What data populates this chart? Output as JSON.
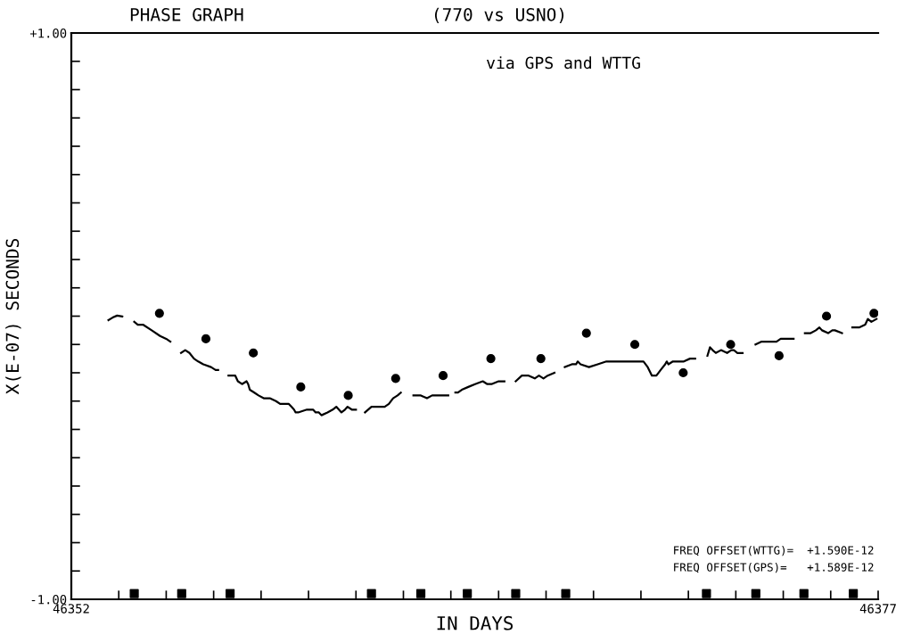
{
  "chart_data": {
    "type": "line",
    "title": "PHASE GRAPH",
    "subtitle": "(770 vs USNO)",
    "xlabel": "IN DAYS",
    "ylabel": "X(E-07) SECONDS",
    "annotations": [
      "via GPS and WTTG",
      "FREQ OFFSET(WTTG)=  +1.590E-12",
      "FREQ OFFSET(GPS)=   +1.589E-12"
    ],
    "xlim": [
      46352,
      46377
    ],
    "ylim": [
      -1.0,
      1.0
    ],
    "xticks": [
      {
        "value": 46352,
        "label": "46352"
      },
      {
        "value": 46353.47,
        "label": null
      },
      {
        "value": 46354.94,
        "label": null
      },
      {
        "value": 46356.41,
        "label": null
      },
      {
        "value": 46357.88,
        "label": null
      },
      {
        "value": 46359.35,
        "label": null
      },
      {
        "value": 46360.82,
        "label": null
      },
      {
        "value": 46362.29,
        "label": null
      },
      {
        "value": 46363.76,
        "label": null
      },
      {
        "value": 46365.24,
        "label": null
      },
      {
        "value": 46366.71,
        "label": null
      },
      {
        "value": 46368.18,
        "label": null
      },
      {
        "value": 46369.65,
        "label": null
      },
      {
        "value": 46371.12,
        "label": null
      },
      {
        "value": 46372.59,
        "label": null
      },
      {
        "value": 46374.06,
        "label": null
      },
      {
        "value": 46375.53,
        "label": null
      },
      {
        "value": 46377,
        "label": "46377"
      }
    ],
    "yticks": [
      {
        "value": -1.0,
        "label": "-1.00"
      },
      {
        "value": -0.9,
        "label": null
      },
      {
        "value": -0.8,
        "label": null
      },
      {
        "value": -0.7,
        "label": null
      },
      {
        "value": -0.6,
        "label": null
      },
      {
        "value": -0.5,
        "label": null
      },
      {
        "value": -0.4,
        "label": null
      },
      {
        "value": -0.3,
        "label": null
      },
      {
        "value": -0.2,
        "label": null
      },
      {
        "value": -0.1,
        "label": null
      },
      {
        "value": 0.0,
        "label": null
      },
      {
        "value": 0.1,
        "label": null
      },
      {
        "value": 0.2,
        "label": null
      },
      {
        "value": 0.3,
        "label": null
      },
      {
        "value": 0.4,
        "label": null
      },
      {
        "value": 0.5,
        "label": null
      },
      {
        "value": 0.6,
        "label": null
      },
      {
        "value": 0.7,
        "label": null
      },
      {
        "value": 0.8,
        "label": null
      },
      {
        "value": 0.9,
        "label": null
      },
      {
        "value": 1.0,
        "label": "+1.00"
      }
    ],
    "grid": false,
    "legend": false,
    "series": [
      {
        "color": "#000000",
        "marker": "none",
        "line_style": "solid",
        "x": [
          46353.15,
          46353.28,
          46353.42,
          46353.58,
          46353.75,
          46353.95,
          46354.06,
          46354.22,
          46354.49,
          46354.75,
          46354.94,
          46355.07,
          46355.2,
          46355.4,
          46355.53,
          46355.66,
          46355.8,
          46355.93,
          46356.09,
          46356.33,
          46356.47,
          46356.55,
          46356.7,
          46356.87,
          46357.0,
          46357.08,
          46357.16,
          46357.29,
          46357.43,
          46357.48,
          46357.53,
          46357.67,
          46357.8,
          46357.96,
          46358.15,
          46358.34,
          46358.47,
          46358.63,
          46358.74,
          46358.82,
          46358.9,
          46358.95,
          46359.03,
          46359.3,
          46359.49,
          46359.57,
          46359.67,
          46359.75,
          46359.94,
          46360.1,
          46360.21,
          46360.29,
          46360.37,
          46360.48,
          46360.56,
          46360.69,
          46360.82,
          46360.96,
          46361.1,
          46361.3,
          46361.49,
          46361.71,
          46361.84,
          46361.97,
          46362.11,
          46362.21,
          46362.43,
          46362.6,
          46362.83,
          46363.02,
          46363.18,
          46363.31,
          46363.5,
          46363.68,
          46363.76,
          46363.9,
          46363.98,
          46364.1,
          46364.3,
          46364.51,
          46364.75,
          46364.89,
          46365.02,
          46365.24,
          46365.42,
          46365.6,
          46365.77,
          46365.96,
          46366.17,
          46366.36,
          46366.49,
          46366.63,
          46366.76,
          46366.97,
          46367.1,
          46367.29,
          46367.51,
          46367.64,
          46367.69,
          46367.78,
          46368.04,
          46368.31,
          46368.58,
          46368.84,
          46369.11,
          46369.46,
          46369.73,
          46369.86,
          46369.99,
          46370.13,
          46370.26,
          46370.4,
          46370.45,
          46370.5,
          46370.64,
          46370.8,
          46370.98,
          46371.17,
          46371.33,
          46371.5,
          46371.71,
          46371.79,
          46371.87,
          46371.97,
          46372.13,
          46372.32,
          46372.45,
          46372.53,
          46372.64,
          46372.8,
          46373.0,
          46373.2,
          46373.39,
          46373.66,
          46373.85,
          46373.98,
          46374.38,
          46374.55,
          46374.73,
          46374.91,
          46375.07,
          46375.18,
          46375.26,
          46375.45,
          46375.58,
          46375.66,
          46375.88,
          46376.05,
          46376.2,
          46376.41,
          46376.6,
          46376.68,
          46376.79,
          46376.95
        ],
        "values": [
          -0.014,
          -0.005,
          0.002,
          -0.001,
          null,
          -0.02,
          -0.03,
          -0.03,
          -0.05,
          -0.07,
          -0.08,
          -0.09,
          null,
          -0.13,
          -0.12,
          -0.13,
          -0.15,
          -0.16,
          -0.17,
          -0.18,
          -0.19,
          -0.19,
          null,
          -0.21,
          -0.21,
          -0.21,
          -0.23,
          -0.24,
          -0.23,
          -0.24,
          -0.26,
          -0.27,
          -0.28,
          -0.29,
          -0.29,
          -0.3,
          -0.31,
          -0.31,
          -0.31,
          -0.32,
          -0.33,
          -0.34,
          -0.34,
          -0.33,
          -0.33,
          -0.34,
          -0.34,
          -0.35,
          -0.34,
          -0.33,
          -0.32,
          -0.33,
          -0.34,
          -0.33,
          -0.32,
          -0.33,
          -0.33,
          null,
          -0.34,
          -0.32,
          -0.32,
          -0.32,
          -0.31,
          -0.29,
          -0.28,
          -0.27,
          null,
          -0.28,
          -0.28,
          -0.29,
          -0.28,
          -0.28,
          -0.28,
          -0.28,
          null,
          -0.27,
          -0.27,
          -0.26,
          -0.25,
          -0.24,
          -0.23,
          -0.24,
          -0.24,
          -0.23,
          -0.23,
          null,
          -0.23,
          -0.21,
          -0.21,
          -0.22,
          -0.21,
          -0.22,
          -0.21,
          -0.2,
          null,
          -0.18,
          -0.17,
          -0.17,
          -0.16,
          -0.17,
          -0.18,
          -0.17,
          -0.16,
          -0.16,
          -0.16,
          -0.16,
          -0.16,
          -0.18,
          -0.21,
          -0.21,
          -0.19,
          -0.17,
          -0.16,
          -0.17,
          -0.16,
          -0.16,
          -0.16,
          -0.15,
          -0.15,
          null,
          -0.14,
          -0.11,
          -0.12,
          -0.13,
          -0.12,
          -0.13,
          -0.12,
          -0.12,
          -0.13,
          -0.13,
          null,
          -0.1,
          -0.09,
          -0.09,
          -0.09,
          -0.08,
          -0.08,
          null,
          -0.06,
          -0.06,
          -0.05,
          -0.04,
          -0.05,
          -0.06,
          -0.05,
          -0.05,
          -0.06,
          null,
          -0.04,
          -0.04,
          -0.03,
          -0.01,
          -0.02,
          -0.01
        ]
      },
      {
        "type": "scatter",
        "color": "#000000",
        "marker": "circle",
        "x": [
          46354.73,
          46356.17,
          46357.64,
          46359.11,
          46360.58,
          46362.05,
          46363.52,
          46365.0,
          46366.55,
          46367.96,
          46369.46,
          46370.96,
          46372.43,
          46373.93,
          46375.4,
          46376.87
        ],
        "values": [
          0.01,
          -0.08,
          -0.13,
          -0.25,
          -0.28,
          -0.22,
          -0.21,
          -0.15,
          -0.15,
          -0.06,
          -0.1,
          -0.2,
          -0.1,
          -0.14,
          0.0,
          0.01
        ]
      },
      {
        "type": "scatter",
        "color": "#000000",
        "marker": "square",
        "x": [
          46353.95,
          46355.42,
          46356.92,
          46361.3,
          46362.83,
          46364.27,
          46365.77,
          46367.32,
          46371.68,
          46373.21,
          46374.7,
          46376.23
        ],
        "values": [
          -0.98,
          -0.98,
          -0.98,
          -0.98,
          -0.98,
          -0.98,
          -0.98,
          -0.98,
          -0.98,
          -0.98,
          -0.98,
          -0.98
        ]
      }
    ]
  }
}
